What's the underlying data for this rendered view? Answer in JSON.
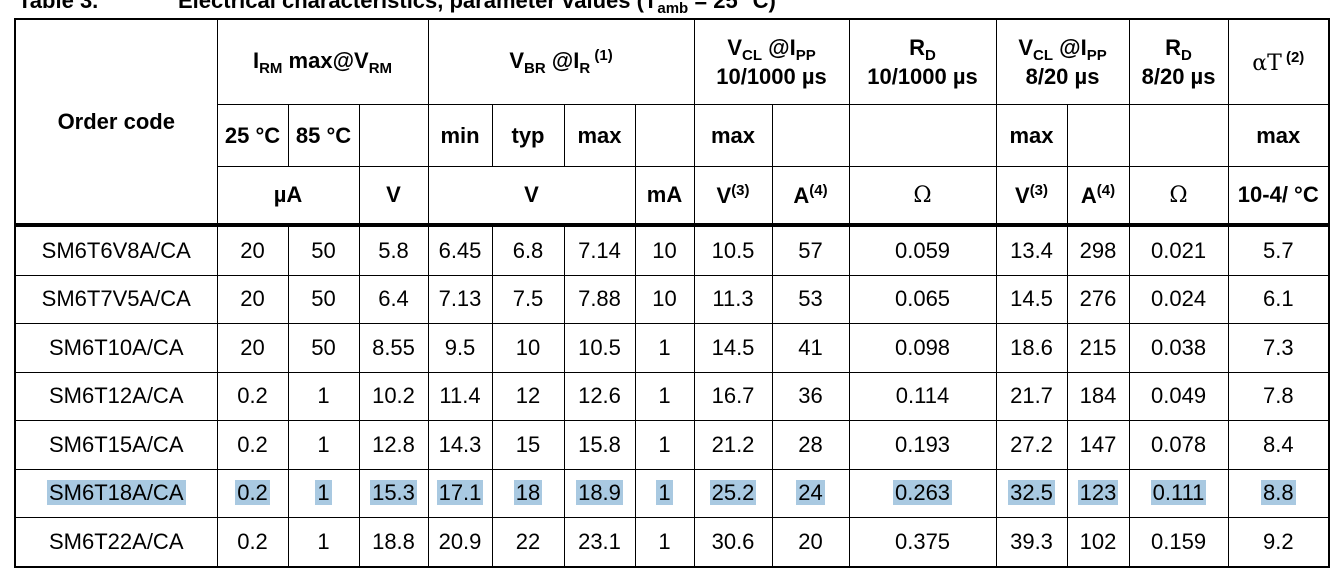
{
  "title": {
    "number": "Table 3.",
    "text": [
      "Electrical characteristics, parameter values (T",
      "amb",
      " = 25 °C)"
    ]
  },
  "header": {
    "order_code": "Order code",
    "irm": [
      "I",
      "RM",
      " max@V",
      "RM"
    ],
    "vbr": [
      "V",
      "BR",
      " @I",
      "R",
      " (1)"
    ],
    "vcl1": [
      "V",
      "CL",
      " @I",
      "PP",
      "10/1000 µs"
    ],
    "rd1": [
      "R",
      "D",
      "10/1000 µs"
    ],
    "vcl2": [
      "V",
      "CL",
      " @I",
      "PP",
      "8/20 µs"
    ],
    "rd2": [
      "R",
      "D",
      "8/20 µs"
    ],
    "at": [
      "αT",
      " (2)"
    ],
    "sub": [
      "25 °C",
      "85 °C",
      "min",
      "typ",
      "max",
      "max",
      "max",
      "max"
    ],
    "units": [
      "µA",
      "V",
      "V",
      "mA",
      [
        "V",
        "(3)"
      ],
      [
        "A",
        "(4)"
      ],
      "Ω",
      [
        "V",
        "(3)"
      ],
      [
        "A",
        "(4)"
      ],
      "Ω",
      "10-4/ °C"
    ]
  },
  "selected_row": 5,
  "rows": [
    [
      "SM6T6V8A/CA",
      20,
      50,
      5.8,
      6.45,
      6.8,
      7.14,
      10,
      10.5,
      57,
      0.059,
      13.4,
      298,
      0.021,
      5.7
    ],
    [
      "SM6T7V5A/CA",
      20,
      50,
      6.4,
      7.13,
      7.5,
      7.88,
      10,
      11.3,
      53,
      0.065,
      14.5,
      276,
      0.024,
      6.1
    ],
    [
      "SM6T10A/CA",
      20,
      50,
      8.55,
      9.5,
      10,
      10.5,
      1,
      14.5,
      41,
      0.098,
      18.6,
      215,
      0.038,
      7.3
    ],
    [
      "SM6T12A/CA",
      0.2,
      1,
      10.2,
      11.4,
      12,
      12.6,
      1,
      16.7,
      36,
      0.114,
      21.7,
      184,
      0.049,
      7.8
    ],
    [
      "SM6T15A/CA",
      0.2,
      1,
      12.8,
      14.3,
      15,
      15.8,
      1,
      21.2,
      28,
      0.193,
      27.2,
      147,
      0.078,
      8.4
    ],
    [
      "SM6T18A/CA",
      0.2,
      1,
      15.3,
      17.1,
      18,
      18.9,
      1,
      25.2,
      24,
      0.263,
      32.5,
      123,
      0.111,
      8.8
    ],
    [
      "SM6T22A/CA",
      0.2,
      1,
      18.8,
      20.9,
      22,
      23.1,
      1,
      30.6,
      20,
      0.375,
      39.3,
      102,
      0.159,
      9.2
    ]
  ]
}
